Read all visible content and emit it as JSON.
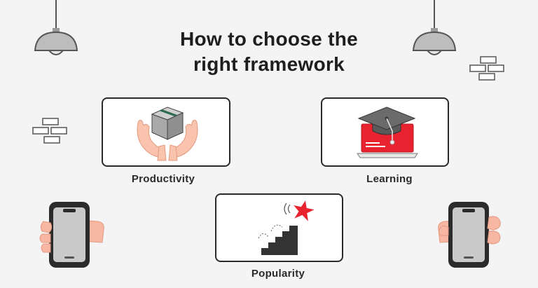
{
  "title": {
    "line1": "How to choose the",
    "line2": "right framework"
  },
  "factors": [
    {
      "label": "Productivity",
      "icon": "hands-holding-box-icon"
    },
    {
      "label": "Learning",
      "icon": "laptop-graduation-cap-icon"
    },
    {
      "label": "Popularity",
      "icon": "stairs-star-icon"
    }
  ],
  "colors": {
    "background": "#f4f4f4",
    "accent_red": "#e8232f",
    "dark": "#2a2a2a",
    "skin": "#f7b7a3"
  }
}
